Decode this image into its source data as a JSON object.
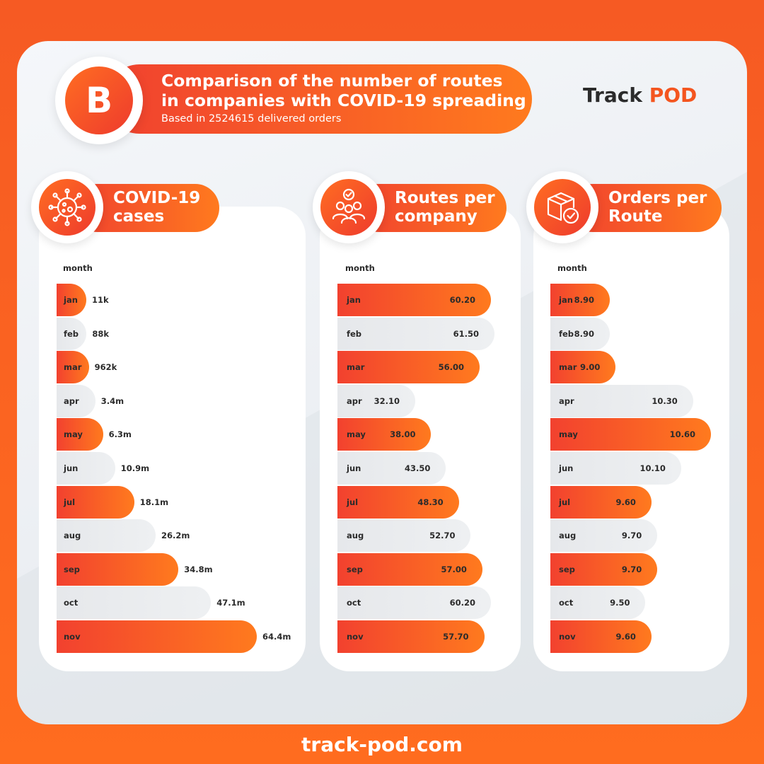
{
  "header": {
    "badge": "B",
    "title_line1": "Comparison of the number of routes",
    "title_line2": "in companies with COVID-19 spreading",
    "subtitle": "Based in 2524615 delivered orders"
  },
  "brand": {
    "part1": "Track",
    "part2": "POD"
  },
  "footer": {
    "url": "track-pod.com"
  },
  "colors": {
    "accent_start": "#f0412f",
    "accent_end": "#ff7a1e",
    "neutral_bar": "#e6e8eb"
  },
  "chart_data": [
    {
      "type": "bar",
      "orientation": "horizontal",
      "title_line1": "COVID-19",
      "title_line2": "cases",
      "icon": "virus-icon",
      "category_header": "month",
      "categories": [
        "jan",
        "feb",
        "mar",
        "apr",
        "may",
        "jun",
        "jul",
        "aug",
        "sep",
        "oct",
        "nov"
      ],
      "values": [
        11000,
        88000,
        962000,
        3400000,
        6300000,
        10900000,
        18100000,
        26200000,
        34800000,
        47100000,
        64400000
      ],
      "labels": [
        "11k",
        "88k",
        "962k",
        "3.4m",
        "6.3m",
        "10.9m",
        "18.1m",
        "26.2m",
        "34.8m",
        "47.1m",
        "64.4m"
      ]
    },
    {
      "type": "bar",
      "orientation": "horizontal",
      "title_line1": "Routes per",
      "title_line2": "company",
      "icon": "team-icon",
      "category_header": "month",
      "categories": [
        "jan",
        "feb",
        "mar",
        "apr",
        "may",
        "jun",
        "jul",
        "aug",
        "sep",
        "oct",
        "nov"
      ],
      "values": [
        60.2,
        61.5,
        56.0,
        32.1,
        38.0,
        43.5,
        48.3,
        52.7,
        57.0,
        60.2,
        57.7
      ],
      "labels": [
        "60.20",
        "61.50",
        "56.00",
        "32.10",
        "38.00",
        "43.50",
        "48.30",
        "52.70",
        "57.00",
        "60.20",
        "57.70"
      ]
    },
    {
      "type": "bar",
      "orientation": "horizontal",
      "title_line1": "Orders per",
      "title_line2": "Route",
      "icon": "package-icon",
      "category_header": "month",
      "categories": [
        "jan",
        "feb",
        "mar",
        "apr",
        "may",
        "jun",
        "jul",
        "aug",
        "sep",
        "oct",
        "nov"
      ],
      "values": [
        8.9,
        8.9,
        9.0,
        10.3,
        10.6,
        10.1,
        9.6,
        9.7,
        9.7,
        9.5,
        9.6
      ],
      "labels": [
        "8.90",
        "8.90",
        "9.00",
        "10.30",
        "10.60",
        "10.10",
        "9.60",
        "9.70",
        "9.70",
        "9.50",
        "9.60"
      ]
    }
  ]
}
